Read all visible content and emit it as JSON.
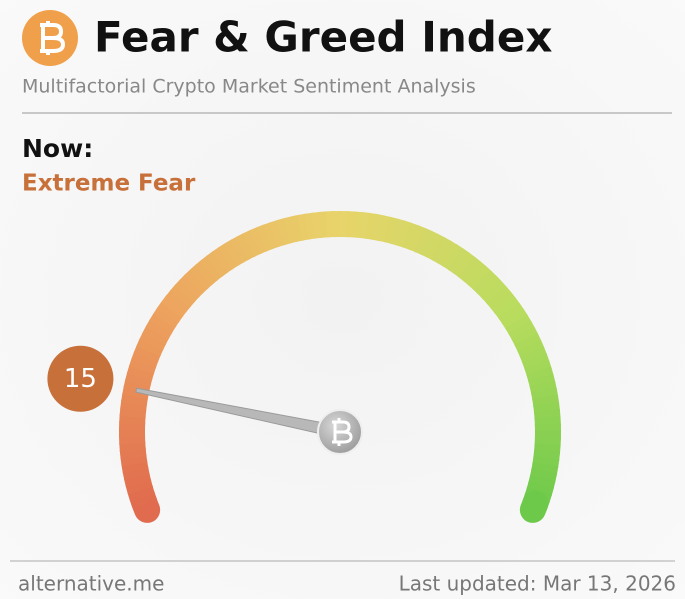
{
  "chart_data": {
    "type": "gauge",
    "title": "Fear & Greed Index",
    "subtitle": "Multifactorial Crypto Market Sentiment Analysis",
    "now_label": "Now:",
    "classification": "Extreme Fear",
    "value": 15,
    "range": [
      0,
      100
    ],
    "value_color": "#c8703a",
    "gradient": [
      "#e06a4e",
      "#eda25e",
      "#e8d46a",
      "#b8dc5e",
      "#6cc94a"
    ],
    "source": "alternative.me",
    "updated": "Last updated: Mar 13, 2026"
  }
}
